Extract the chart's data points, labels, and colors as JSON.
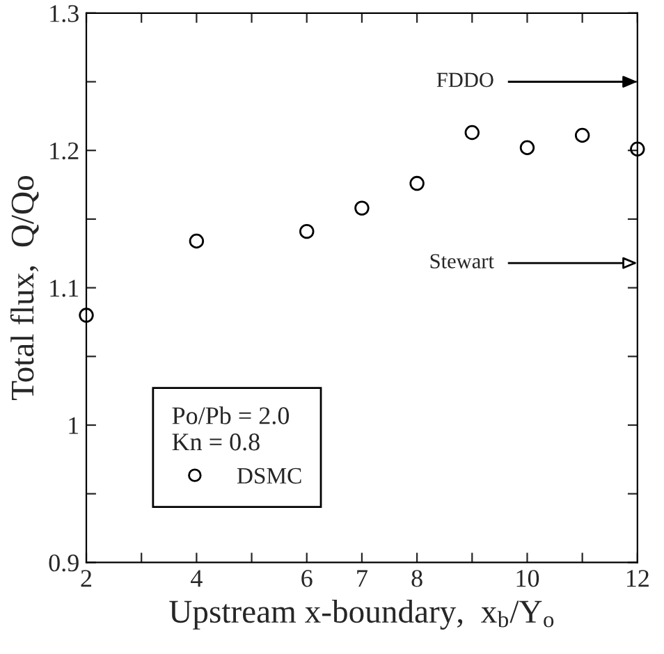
{
  "chart_data": {
    "type": "scatter",
    "xlabel": "Upstream x-boundary,  x$_{b}$/Y$_{o}$",
    "ylabel": "Total flux,  Q/Qo",
    "legend_title": "Po/Pb = 2.0\nKn = 0.8",
    "x": [
      2,
      4,
      6,
      7,
      8,
      9,
      10,
      11,
      12
    ],
    "series": [
      {
        "name": "DSMC",
        "color": "#000000",
        "values": [
          1.08,
          1.134,
          1.141,
          1.158,
          1.176,
          1.213,
          1.202,
          1.211,
          1.201
        ]
      }
    ],
    "marker": "circle",
    "xlim": [
      2,
      12
    ],
    "ylim": [
      0.9,
      1.3
    ],
    "xticks": [
      2,
      {
        "value": 3,
        "label": null
      },
      4,
      {
        "value": 5,
        "label": null
      },
      6,
      7,
      8,
      {
        "value": 9,
        "label": null
      },
      10,
      {
        "value": 11,
        "label": null
      },
      12
    ],
    "yticks": [
      {
        "value": 0.9,
        "label": "0.9"
      },
      {
        "value": 0.95,
        "label": null
      },
      {
        "value": 1.0,
        "label": "1"
      },
      {
        "value": 1.05,
        "label": null
      },
      {
        "value": 1.1,
        "label": "1.1"
      },
      {
        "value": 1.15,
        "label": null
      },
      {
        "value": 1.2,
        "label": "1.2"
      },
      {
        "value": 1.25,
        "label": null
      },
      {
        "value": 1.3,
        "label": "1.3"
      }
    ],
    "ref_lines": [
      {
        "axis": "y",
        "value": 1.25,
        "label": "FDDO"
      },
      {
        "axis": "y",
        "value": 1.118,
        "label": "Stewart"
      }
    ],
    "legend": "bottom left",
    "grid": false
  }
}
